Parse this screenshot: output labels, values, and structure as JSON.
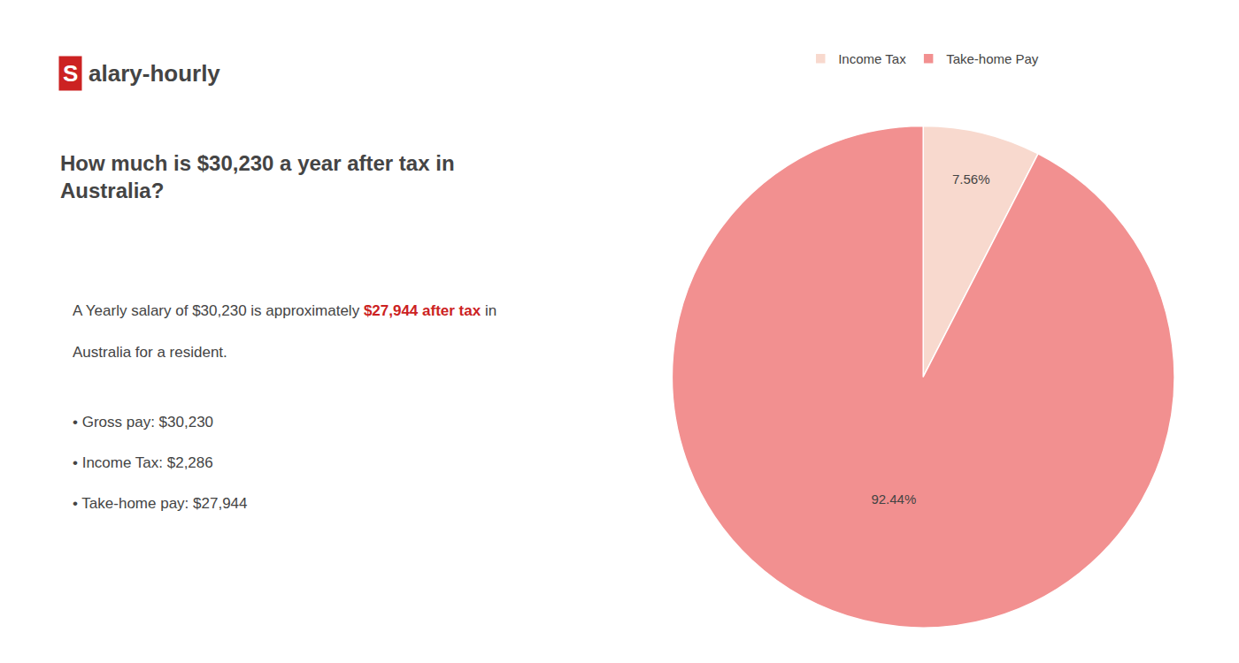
{
  "chart_data": {
    "type": "pie",
    "title": "How much is $30,230 a year after tax in\nAustralia?",
    "logo": [
      {
        "text": "S",
        "color": "#ffffff",
        "box_color": "#cc2222"
      },
      {
        "text": "alary-hourly"
      }
    ],
    "annotations": [
      {
        "segments": [
          {
            "text": "A Yearly salary of $30,230 is approximately "
          },
          {
            "text": "$27,944 after tax",
            "color": "#cc2222"
          },
          {
            "text": " in"
          }
        ]
      },
      {
        "text": "Australia for a resident."
      },
      {
        "text": "• Gross pay: $30,230"
      },
      {
        "text": "• Income Tax: $2,286"
      },
      {
        "text": "• Take-home pay: $27,944"
      }
    ],
    "categories": [
      "Income Tax",
      "Take-home Pay"
    ],
    "values": [
      7.56,
      92.44
    ],
    "value_labels": [
      "7.56%",
      "92.44%"
    ],
    "colors": [
      "#f8d9ce",
      "#f29090"
    ],
    "data_labels": true,
    "legend": "top"
  }
}
